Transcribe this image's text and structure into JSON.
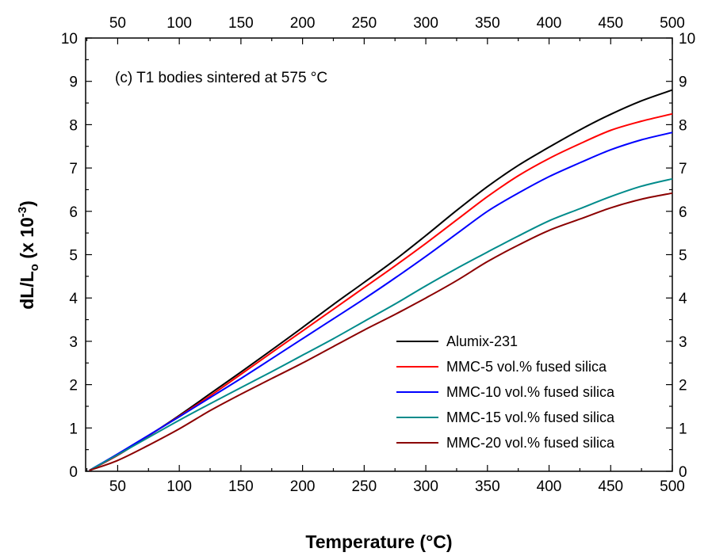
{
  "chart_data": {
    "type": "line",
    "annotation": "(c) T1 bodies sintered at 575 °C",
    "xlabel": "Temperature (°C)",
    "ylabel": {
      "main": "dL/L",
      "sub": "o",
      "rest": " (x 10",
      "sup": "-3",
      "close": ")"
    },
    "xlim": [
      24,
      500
    ],
    "ylim": [
      0,
      10
    ],
    "xticks": [
      50,
      100,
      150,
      200,
      250,
      300,
      350,
      400,
      450,
      500
    ],
    "yticks": [
      0,
      1,
      2,
      3,
      4,
      5,
      6,
      7,
      8,
      9,
      10
    ],
    "legend_position": "bottom-right",
    "series": [
      {
        "name": "Alumix-231",
        "color": "#000000",
        "x": [
          27,
          50,
          75,
          100,
          125,
          150,
          175,
          200,
          225,
          250,
          275,
          300,
          325,
          350,
          375,
          400,
          425,
          450,
          475,
          500
        ],
        "y": [
          0.02,
          0.37,
          0.82,
          1.29,
          1.79,
          2.29,
          2.8,
          3.32,
          3.85,
          4.36,
          4.88,
          5.44,
          6.02,
          6.57,
          7.06,
          7.48,
          7.88,
          8.24,
          8.55,
          8.8
        ]
      },
      {
        "name": "MMC-5 vol.% fused silica",
        "color": "#ff0000",
        "x": [
          27,
          50,
          75,
          100,
          125,
          150,
          175,
          200,
          225,
          250,
          275,
          300,
          325,
          350,
          375,
          400,
          425,
          450,
          475,
          500
        ],
        "y": [
          0.02,
          0.37,
          0.82,
          1.27,
          1.74,
          2.24,
          2.74,
          3.24,
          3.74,
          4.24,
          4.74,
          5.26,
          5.8,
          6.34,
          6.82,
          7.22,
          7.56,
          7.87,
          8.08,
          8.25
        ]
      },
      {
        "name": "MMC-10 vol.% fused silica",
        "color": "#0000ff",
        "x": [
          27,
          50,
          75,
          100,
          125,
          150,
          175,
          200,
          225,
          250,
          275,
          300,
          325,
          350,
          375,
          400,
          425,
          450,
          475,
          500
        ],
        "y": [
          0.02,
          0.4,
          0.83,
          1.26,
          1.7,
          2.14,
          2.6,
          3.06,
          3.52,
          3.98,
          4.46,
          4.96,
          5.48,
          6.0,
          6.42,
          6.8,
          7.12,
          7.42,
          7.65,
          7.82
        ]
      },
      {
        "name": "MMC-15 vol.% fused silica",
        "color": "#008b8b",
        "x": [
          27,
          50,
          75,
          100,
          125,
          150,
          175,
          200,
          225,
          250,
          275,
          300,
          325,
          350,
          375,
          400,
          425,
          450,
          475,
          500
        ],
        "y": [
          0.02,
          0.38,
          0.78,
          1.18,
          1.56,
          1.93,
          2.3,
          2.68,
          3.06,
          3.46,
          3.86,
          4.28,
          4.68,
          5.06,
          5.43,
          5.78,
          6.06,
          6.34,
          6.58,
          6.75
        ]
      },
      {
        "name": "MMC-20 vol.% fused silica",
        "color": "#8b0000",
        "x": [
          27,
          50,
          75,
          100,
          125,
          150,
          175,
          200,
          225,
          250,
          275,
          300,
          325,
          350,
          375,
          400,
          425,
          450,
          475,
          500
        ],
        "y": [
          0.02,
          0.25,
          0.6,
          0.98,
          1.4,
          1.78,
          2.14,
          2.5,
          2.88,
          3.26,
          3.62,
          4.0,
          4.4,
          4.84,
          5.22,
          5.56,
          5.82,
          6.08,
          6.28,
          6.42
        ]
      }
    ]
  }
}
